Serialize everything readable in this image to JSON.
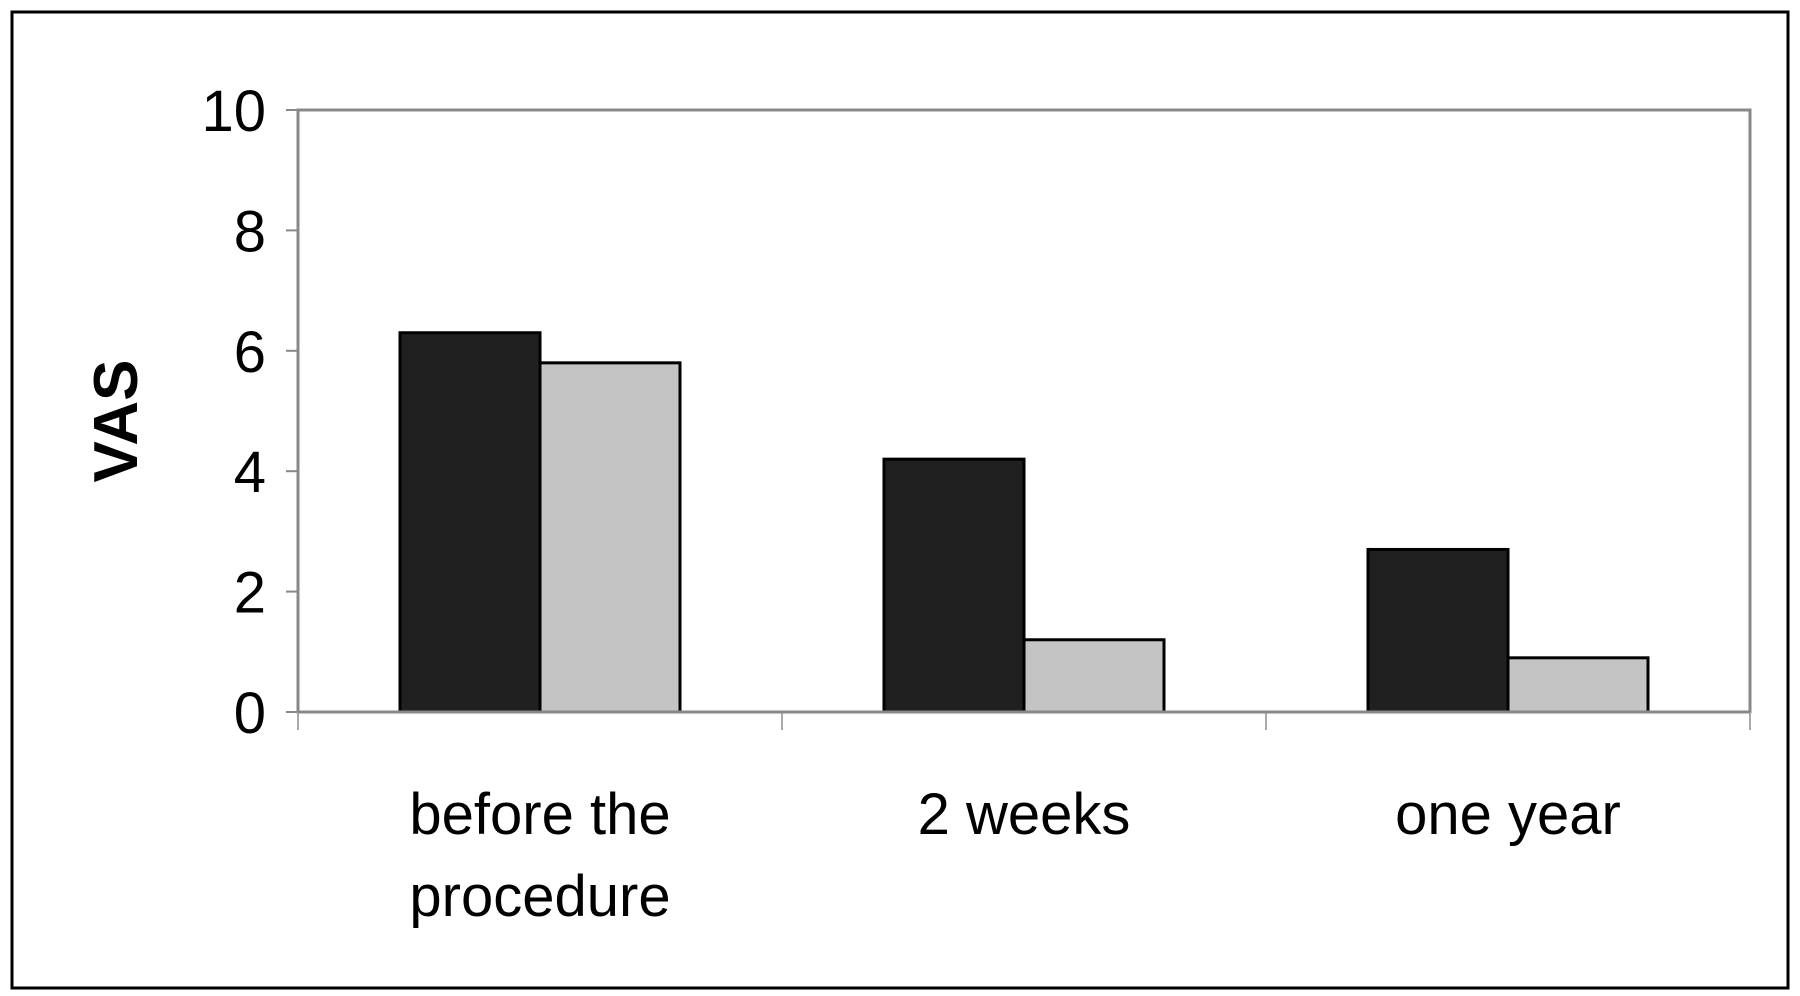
{
  "chart_data": {
    "type": "bar",
    "ylabel": "VAS",
    "xlabel": "",
    "ylim": [
      0,
      10
    ],
    "yticks": [
      "0",
      "2",
      "4",
      "6",
      "8",
      "10"
    ],
    "categories": [
      [
        "before the",
        "procedure"
      ],
      [
        "2 weeks"
      ],
      [
        "one year"
      ]
    ],
    "series": [
      {
        "values": [
          6.3,
          4.2,
          2.7
        ],
        "color": "#202020"
      },
      {
        "values": [
          5.8,
          1.2,
          0.9
        ],
        "color": "#c4c4c4"
      }
    ],
    "grid": false,
    "legend": "none"
  }
}
